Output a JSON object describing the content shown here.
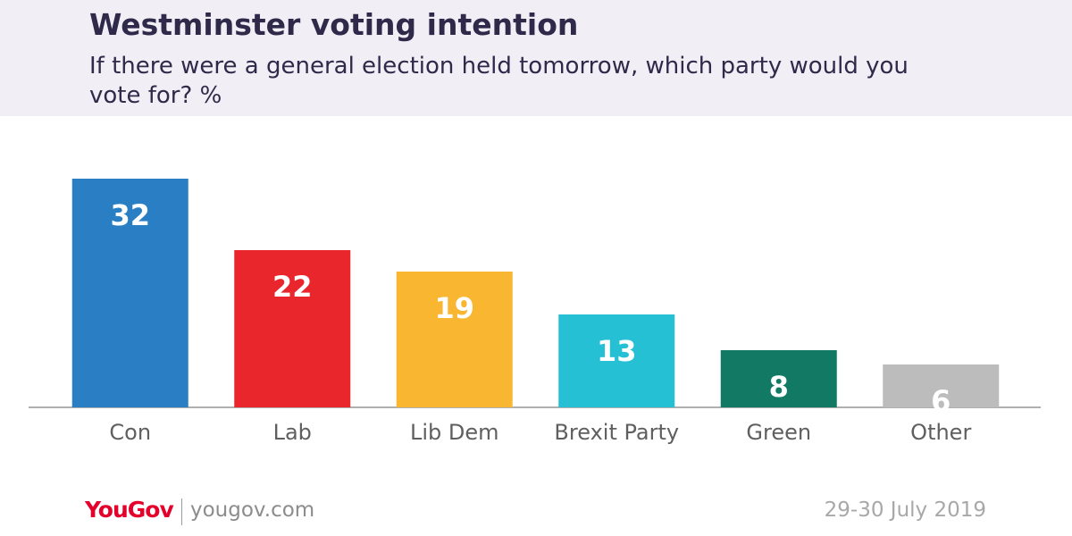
{
  "header": {
    "title": "Westminster voting intention",
    "subtitle": "If there were a general election held tomorrow, which party would you vote for? %"
  },
  "footer": {
    "brand": "YouGov",
    "url": "yougov.com",
    "date": "29-30 July 2019"
  },
  "colors": {
    "header_bg": "#f1eef5",
    "title_text": "#2f2a4a",
    "brand_red": "#e4002b"
  },
  "chart_data": {
    "type": "bar",
    "title": "Westminster voting intention",
    "subtitle": "If there were a general election held tomorrow, which party would you vote for? %",
    "categories": [
      "Con",
      "Lab",
      "Lib Dem",
      "Brexit Party",
      "Green",
      "Other"
    ],
    "values": [
      32,
      22,
      19,
      13,
      8,
      6
    ],
    "colors": [
      "#2a7fc4",
      "#e8262c",
      "#f8b631",
      "#25c0d4",
      "#127a64",
      "#bcbcbc"
    ],
    "ylim": [
      0,
      35
    ],
    "grid": false,
    "legend": "none",
    "data_labels": true
  }
}
